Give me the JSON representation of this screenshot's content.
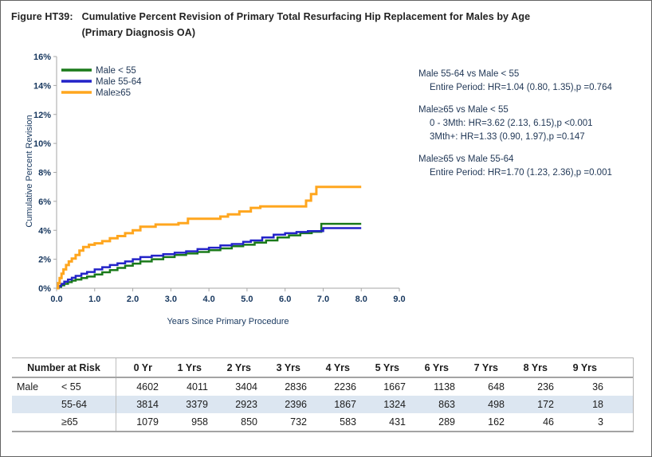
{
  "figure": {
    "label": "Figure HT39:",
    "title": "Cumulative Percent Revision of Primary Total Resurfacing Hip Replacement for Males by Age",
    "subtitle": "(Primary Diagnosis OA)"
  },
  "chart_data": {
    "type": "line",
    "step": true,
    "title": "",
    "xlabel": "Years Since Primary Procedure",
    "ylabel": "Cumulative Percent Revision",
    "xlim": [
      0,
      9
    ],
    "ylim": [
      0,
      16
    ],
    "grid": false,
    "legend_position": "top-left",
    "axis_color": "#a6a6a6",
    "text_color": "#17375e",
    "xticks": [
      [
        0,
        "0.0"
      ],
      [
        1,
        "1.0"
      ],
      [
        2,
        "2.0"
      ],
      [
        3,
        "3.0"
      ],
      [
        4,
        "4.0"
      ],
      [
        5,
        "5.0"
      ],
      [
        6,
        "6.0"
      ],
      [
        7,
        "7.0"
      ],
      [
        8,
        "8.0"
      ],
      [
        9,
        "9.0"
      ]
    ],
    "yticks": [
      [
        0,
        "0%"
      ],
      [
        2,
        "2%"
      ],
      [
        4,
        "4%"
      ],
      [
        6,
        "6%"
      ],
      [
        8,
        "8%"
      ],
      [
        10,
        "10%"
      ],
      [
        12,
        "12%"
      ],
      [
        14,
        "14%"
      ],
      [
        16,
        "16%"
      ]
    ],
    "series": [
      {
        "id": "male-lt-55",
        "name": "Male < 55",
        "color": "#1a7a1a",
        "width": 2.5,
        "points": [
          [
            0,
            0
          ],
          [
            0.05,
            0.1
          ],
          [
            0.12,
            0.2
          ],
          [
            0.2,
            0.3
          ],
          [
            0.3,
            0.42
          ],
          [
            0.4,
            0.52
          ],
          [
            0.5,
            0.6
          ],
          [
            0.65,
            0.7
          ],
          [
            0.8,
            0.8
          ],
          [
            1.0,
            0.95
          ],
          [
            1.2,
            1.1
          ],
          [
            1.4,
            1.25
          ],
          [
            1.6,
            1.4
          ],
          [
            1.8,
            1.55
          ],
          [
            2.0,
            1.7
          ],
          [
            2.2,
            1.85
          ],
          [
            2.5,
            2.0
          ],
          [
            2.8,
            2.15
          ],
          [
            3.1,
            2.3
          ],
          [
            3.4,
            2.4
          ],
          [
            3.7,
            2.5
          ],
          [
            4.0,
            2.62
          ],
          [
            4.3,
            2.75
          ],
          [
            4.6,
            2.9
          ],
          [
            4.9,
            3.0
          ],
          [
            5.2,
            3.15
          ],
          [
            5.5,
            3.3
          ],
          [
            5.8,
            3.5
          ],
          [
            6.1,
            3.65
          ],
          [
            6.4,
            3.8
          ],
          [
            6.7,
            3.9
          ],
          [
            6.95,
            4.45
          ],
          [
            8.0,
            4.45
          ]
        ]
      },
      {
        "id": "male-55-64",
        "name": "Male 55-64",
        "color": "#2323c8",
        "width": 2.5,
        "points": [
          [
            0,
            0
          ],
          [
            0.05,
            0.15
          ],
          [
            0.12,
            0.3
          ],
          [
            0.2,
            0.45
          ],
          [
            0.3,
            0.6
          ],
          [
            0.4,
            0.72
          ],
          [
            0.5,
            0.85
          ],
          [
            0.65,
            1.0
          ],
          [
            0.8,
            1.12
          ],
          [
            1.0,
            1.3
          ],
          [
            1.2,
            1.45
          ],
          [
            1.4,
            1.6
          ],
          [
            1.6,
            1.72
          ],
          [
            1.8,
            1.85
          ],
          [
            2.0,
            2.0
          ],
          [
            2.2,
            2.15
          ],
          [
            2.5,
            2.25
          ],
          [
            2.8,
            2.35
          ],
          [
            3.1,
            2.45
          ],
          [
            3.4,
            2.55
          ],
          [
            3.7,
            2.7
          ],
          [
            4.0,
            2.8
          ],
          [
            4.3,
            2.95
          ],
          [
            4.6,
            3.05
          ],
          [
            4.9,
            3.2
          ],
          [
            5.1,
            3.3
          ],
          [
            5.4,
            3.5
          ],
          [
            5.7,
            3.7
          ],
          [
            6.0,
            3.8
          ],
          [
            6.3,
            3.88
          ],
          [
            6.6,
            3.95
          ],
          [
            7.0,
            4.15
          ],
          [
            8.0,
            4.15
          ]
        ]
      },
      {
        "id": "male-ge-65",
        "name": "Male≥65",
        "color": "#ffa61e",
        "width": 3,
        "points": [
          [
            0,
            0
          ],
          [
            0.04,
            0.35
          ],
          [
            0.08,
            0.7
          ],
          [
            0.13,
            1.0
          ],
          [
            0.18,
            1.3
          ],
          [
            0.25,
            1.6
          ],
          [
            0.32,
            1.85
          ],
          [
            0.4,
            2.05
          ],
          [
            0.5,
            2.3
          ],
          [
            0.6,
            2.6
          ],
          [
            0.7,
            2.85
          ],
          [
            0.85,
            3.0
          ],
          [
            1.0,
            3.1
          ],
          [
            1.2,
            3.25
          ],
          [
            1.4,
            3.45
          ],
          [
            1.6,
            3.6
          ],
          [
            1.8,
            3.8
          ],
          [
            2.0,
            4.0
          ],
          [
            2.2,
            4.25
          ],
          [
            2.6,
            4.4
          ],
          [
            3.2,
            4.5
          ],
          [
            3.45,
            4.8
          ],
          [
            4.3,
            4.95
          ],
          [
            4.5,
            5.1
          ],
          [
            4.8,
            5.3
          ],
          [
            5.1,
            5.55
          ],
          [
            5.35,
            5.65
          ],
          [
            6.55,
            6.05
          ],
          [
            6.68,
            6.5
          ],
          [
            6.82,
            7.0
          ],
          [
            8.0,
            7.0
          ]
        ]
      }
    ]
  },
  "stats": {
    "groups": [
      {
        "header": "Male 55-64 vs Male < 55",
        "lines": [
          "Entire Period: HR=1.04 (0.80, 1.35),p =0.764"
        ]
      },
      {
        "header": "Male≥65 vs Male < 55",
        "lines": [
          "0 - 3Mth: HR=3.62 (2.13, 6.15),p <0.001",
          "3Mth+: HR=1.33 (0.90, 1.97),p =0.147"
        ]
      },
      {
        "header": "Male≥65 vs Male 55-64",
        "lines": [
          "Entire Period: HR=1.70 (1.23, 2.36),p =0.001"
        ]
      }
    ]
  },
  "table": {
    "header_label": "Number at Risk",
    "col_headers": [
      "0 Yr",
      "1 Yrs",
      "2 Yrs",
      "3 Yrs",
      "4 Yrs",
      "5 Yrs",
      "6 Yrs",
      "7 Yrs",
      "8 Yrs",
      "9 Yrs"
    ],
    "row_alt_color": "#dce6f1",
    "rows": [
      {
        "group": "Male",
        "age": "< 55",
        "values": [
          "4602",
          "4011",
          "3404",
          "2836",
          "2236",
          "1667",
          "1138",
          "648",
          "236",
          "36"
        ]
      },
      {
        "group": "",
        "age": "55-64",
        "values": [
          "3814",
          "3379",
          "2923",
          "2396",
          "1867",
          "1324",
          "863",
          "498",
          "172",
          "18"
        ]
      },
      {
        "group": "",
        "age": "≥65",
        "values": [
          "1079",
          "958",
          "850",
          "732",
          "583",
          "431",
          "289",
          "162",
          "46",
          "3"
        ]
      }
    ]
  }
}
